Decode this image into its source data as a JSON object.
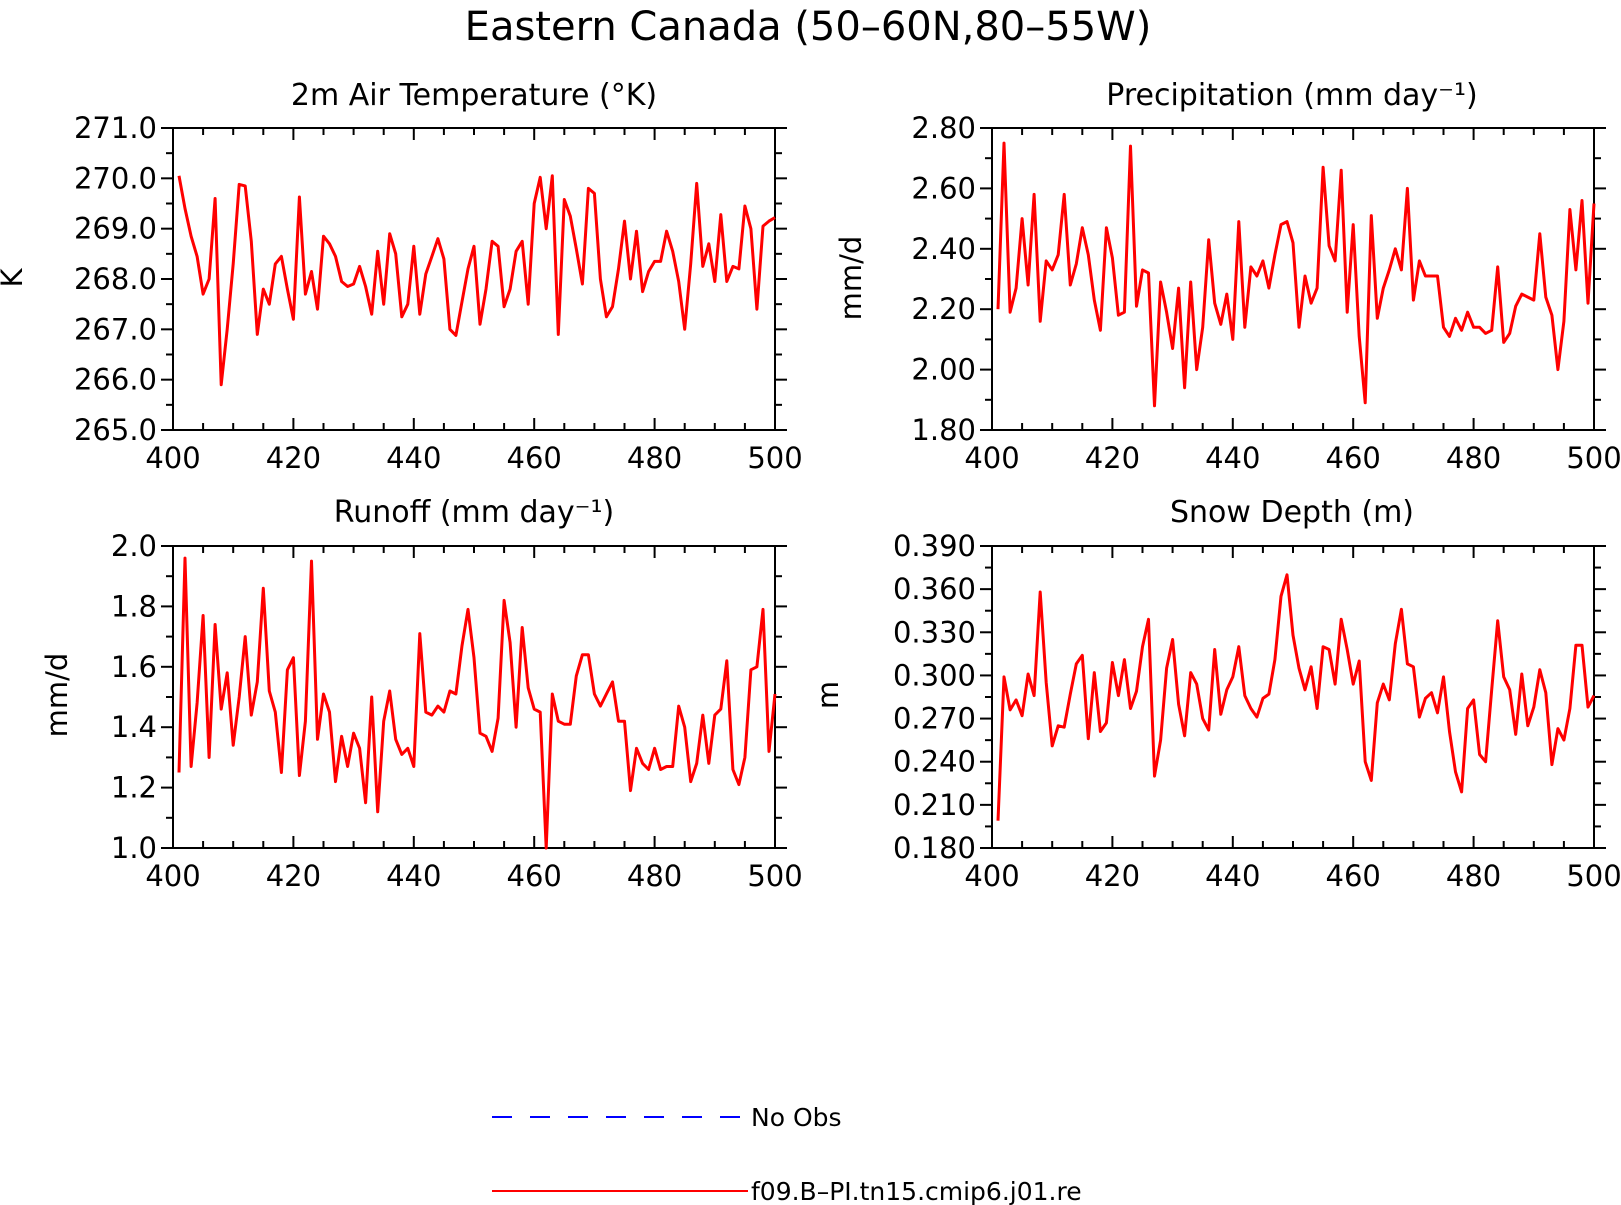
{
  "figure": {
    "title": "Eastern Canada (50–60N,80–55W)"
  },
  "legend": [
    {
      "label": "No Obs",
      "color": "#0000ff",
      "dashed": true
    },
    {
      "label": "f09.B–PI.tn15.cmip6.j01.re",
      "color": "#ff0000",
      "dashed": false
    }
  ],
  "colors": {
    "series": "#ff0000",
    "obs": "#0000ff",
    "axis": "#000000"
  },
  "chart_data": [
    {
      "type": "line",
      "title": "2m Air Temperature (°K)",
      "ylabel": "K",
      "xlabel": "",
      "xlim": [
        400,
        500
      ],
      "ylim": [
        265.0,
        271.0
      ],
      "x_ticks": [
        "400",
        "420",
        "440",
        "460",
        "480",
        "500"
      ],
      "y_ticks": [
        "265.0",
        "266.0",
        "267.0",
        "268.0",
        "269.0",
        "270.0",
        "271.0"
      ],
      "series": [
        {
          "name": "f09.B–PI.tn15.cmip6.j01.re",
          "x_start": 401,
          "values": [
            270.05,
            269.4,
            268.85,
            268.45,
            267.7,
            268.0,
            269.6,
            265.9,
            267.0,
            268.3,
            269.88,
            269.85,
            268.75,
            266.9,
            267.8,
            267.5,
            268.3,
            268.45,
            267.8,
            267.2,
            269.63,
            267.7,
            268.15,
            267.4,
            268.85,
            268.7,
            268.45,
            267.95,
            267.85,
            267.9,
            268.25,
            267.85,
            267.3,
            268.55,
            267.5,
            268.9,
            268.5,
            267.25,
            267.5,
            268.65,
            267.3,
            268.1,
            268.45,
            268.8,
            268.4,
            267.0,
            266.88,
            267.55,
            268.2,
            268.65,
            267.1,
            267.8,
            268.75,
            268.65,
            267.45,
            267.8,
            268.55,
            268.75,
            267.5,
            269.5,
            270.02,
            269.0,
            270.05,
            266.9,
            269.58,
            269.25,
            268.6,
            267.9,
            269.8,
            269.7,
            268.0,
            267.25,
            267.45,
            268.2,
            269.15,
            268.0,
            268.95,
            267.75,
            268.15,
            268.35,
            268.35,
            268.95,
            268.55,
            267.95,
            267.0,
            268.3,
            269.9,
            268.25,
            268.7,
            267.95,
            269.28,
            267.95,
            268.25,
            268.2,
            269.45,
            269.0,
            267.4,
            269.05,
            269.15,
            269.22
          ]
        }
      ]
    },
    {
      "type": "line",
      "title": "Precipitation (mm day⁻¹)",
      "ylabel": "mm/d",
      "xlabel": "",
      "xlim": [
        400,
        500
      ],
      "ylim": [
        1.8,
        2.8
      ],
      "x_ticks": [
        "400",
        "420",
        "440",
        "460",
        "480",
        "500"
      ],
      "y_ticks": [
        "1.80",
        "2.00",
        "2.20",
        "2.40",
        "2.60",
        "2.80"
      ],
      "series": [
        {
          "name": "f09.B–PI.tn15.cmip6.j01.re",
          "x_start": 401,
          "values": [
            2.2,
            2.75,
            2.19,
            2.27,
            2.5,
            2.28,
            2.58,
            2.16,
            2.36,
            2.33,
            2.38,
            2.58,
            2.28,
            2.35,
            2.47,
            2.38,
            2.23,
            2.13,
            2.47,
            2.37,
            2.18,
            2.19,
            2.74,
            2.21,
            2.33,
            2.32,
            1.88,
            2.29,
            2.19,
            2.07,
            2.27,
            1.94,
            2.29,
            2.0,
            2.14,
            2.43,
            2.22,
            2.15,
            2.25,
            2.1,
            2.49,
            2.14,
            2.34,
            2.31,
            2.36,
            2.27,
            2.38,
            2.48,
            2.49,
            2.42,
            2.14,
            2.31,
            2.22,
            2.27,
            2.67,
            2.41,
            2.36,
            2.66,
            2.19,
            2.48,
            2.11,
            1.89,
            2.51,
            2.17,
            2.27,
            2.33,
            2.4,
            2.33,
            2.6,
            2.23,
            2.36,
            2.31,
            2.31,
            2.31,
            2.14,
            2.11,
            2.17,
            2.13,
            2.19,
            2.14,
            2.14,
            2.12,
            2.13,
            2.34,
            2.09,
            2.12,
            2.21,
            2.25,
            2.24,
            2.23,
            2.45,
            2.24,
            2.18,
            2.0,
            2.16,
            2.53,
            2.33,
            2.56,
            2.22,
            2.55
          ]
        }
      ]
    },
    {
      "type": "line",
      "title": "Runoff (mm day⁻¹)",
      "ylabel": "mm/d",
      "xlabel": "",
      "xlim": [
        400,
        500
      ],
      "ylim": [
        1.0,
        2.0
      ],
      "x_ticks": [
        "400",
        "420",
        "440",
        "460",
        "480",
        "500"
      ],
      "y_ticks": [
        "1.0",
        "1.2",
        "1.4",
        "1.6",
        "1.8",
        "2.0"
      ],
      "series": [
        {
          "name": "f09.B–PI.tn15.cmip6.j01.re",
          "x_start": 401,
          "values": [
            1.25,
            1.96,
            1.27,
            1.48,
            1.77,
            1.3,
            1.74,
            1.46,
            1.58,
            1.34,
            1.5,
            1.7,
            1.44,
            1.55,
            1.86,
            1.52,
            1.45,
            1.25,
            1.59,
            1.63,
            1.24,
            1.42,
            1.95,
            1.36,
            1.51,
            1.45,
            1.22,
            1.37,
            1.27,
            1.38,
            1.33,
            1.15,
            1.5,
            1.12,
            1.42,
            1.52,
            1.36,
            1.31,
            1.33,
            1.27,
            1.71,
            1.45,
            1.44,
            1.47,
            1.45,
            1.52,
            1.51,
            1.67,
            1.79,
            1.63,
            1.38,
            1.37,
            1.32,
            1.43,
            1.82,
            1.68,
            1.4,
            1.73,
            1.53,
            1.46,
            1.45,
            1.0,
            1.51,
            1.42,
            1.41,
            1.41,
            1.57,
            1.64,
            1.64,
            1.51,
            1.47,
            1.51,
            1.55,
            1.42,
            1.42,
            1.19,
            1.33,
            1.28,
            1.26,
            1.33,
            1.26,
            1.27,
            1.27,
            1.47,
            1.4,
            1.22,
            1.28,
            1.44,
            1.28,
            1.44,
            1.46,
            1.62,
            1.26,
            1.21,
            1.3,
            1.59,
            1.6,
            1.79,
            1.32,
            1.51
          ]
        }
      ]
    },
    {
      "type": "line",
      "title": "Snow Depth (m)",
      "ylabel": "m",
      "xlabel": "",
      "xlim": [
        400,
        500
      ],
      "ylim": [
        0.18,
        0.39
      ],
      "x_ticks": [
        "400",
        "420",
        "440",
        "460",
        "480",
        "500"
      ],
      "y_ticks": [
        "0.180",
        "0.210",
        "0.240",
        "0.270",
        "0.300",
        "0.330",
        "0.360",
        "0.390"
      ],
      "series": [
        {
          "name": "f09.B–PI.tn15.cmip6.j01.re",
          "x_start": 401,
          "values": [
            0.199,
            0.299,
            0.276,
            0.283,
            0.272,
            0.301,
            0.286,
            0.358,
            0.295,
            0.251,
            0.265,
            0.264,
            0.287,
            0.308,
            0.314,
            0.256,
            0.302,
            0.261,
            0.267,
            0.309,
            0.286,
            0.311,
            0.277,
            0.289,
            0.32,
            0.339,
            0.23,
            0.255,
            0.305,
            0.325,
            0.28,
            0.258,
            0.302,
            0.294,
            0.27,
            0.262,
            0.318,
            0.273,
            0.29,
            0.299,
            0.32,
            0.286,
            0.277,
            0.271,
            0.284,
            0.287,
            0.311,
            0.355,
            0.37,
            0.328,
            0.305,
            0.29,
            0.306,
            0.277,
            0.32,
            0.318,
            0.294,
            0.339,
            0.318,
            0.294,
            0.31,
            0.24,
            0.227,
            0.281,
            0.294,
            0.283,
            0.322,
            0.346,
            0.308,
            0.306,
            0.271,
            0.284,
            0.288,
            0.274,
            0.299,
            0.261,
            0.233,
            0.219,
            0.277,
            0.283,
            0.245,
            0.24,
            0.29,
            0.338,
            0.299,
            0.29,
            0.259,
            0.301,
            0.265,
            0.278,
            0.304,
            0.288,
            0.238,
            0.263,
            0.255,
            0.277,
            0.321,
            0.321,
            0.278,
            0.286
          ]
        }
      ]
    }
  ]
}
